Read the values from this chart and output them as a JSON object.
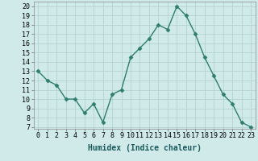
{
  "x": [
    0,
    1,
    2,
    3,
    4,
    5,
    6,
    7,
    8,
    9,
    10,
    11,
    12,
    13,
    14,
    15,
    16,
    17,
    18,
    19,
    20,
    21,
    22,
    23
  ],
  "y": [
    13,
    12,
    11.5,
    10,
    10,
    8.5,
    9.5,
    7.5,
    10.5,
    11,
    14.5,
    15.5,
    16.5,
    18,
    17.5,
    20,
    19,
    17,
    14.5,
    12.5,
    10.5,
    9.5,
    7.5,
    7
  ],
  "line_color": "#2e7d6e",
  "marker": "D",
  "marker_size": 2.5,
  "bg_color": "#d0eaea",
  "grid_color": "#aecece",
  "xlabel": "Humidex (Indice chaleur)",
  "ylabel": "",
  "title": "",
  "xlim": [
    -0.5,
    23.5
  ],
  "ylim": [
    6.8,
    20.5
  ],
  "yticks": [
    7,
    8,
    9,
    10,
    11,
    12,
    13,
    14,
    15,
    16,
    17,
    18,
    19,
    20
  ],
  "xticks": [
    0,
    1,
    2,
    3,
    4,
    5,
    6,
    7,
    8,
    9,
    10,
    11,
    12,
    13,
    14,
    15,
    16,
    17,
    18,
    19,
    20,
    21,
    22,
    23
  ],
  "xlabel_fontsize": 7,
  "tick_fontsize": 6
}
